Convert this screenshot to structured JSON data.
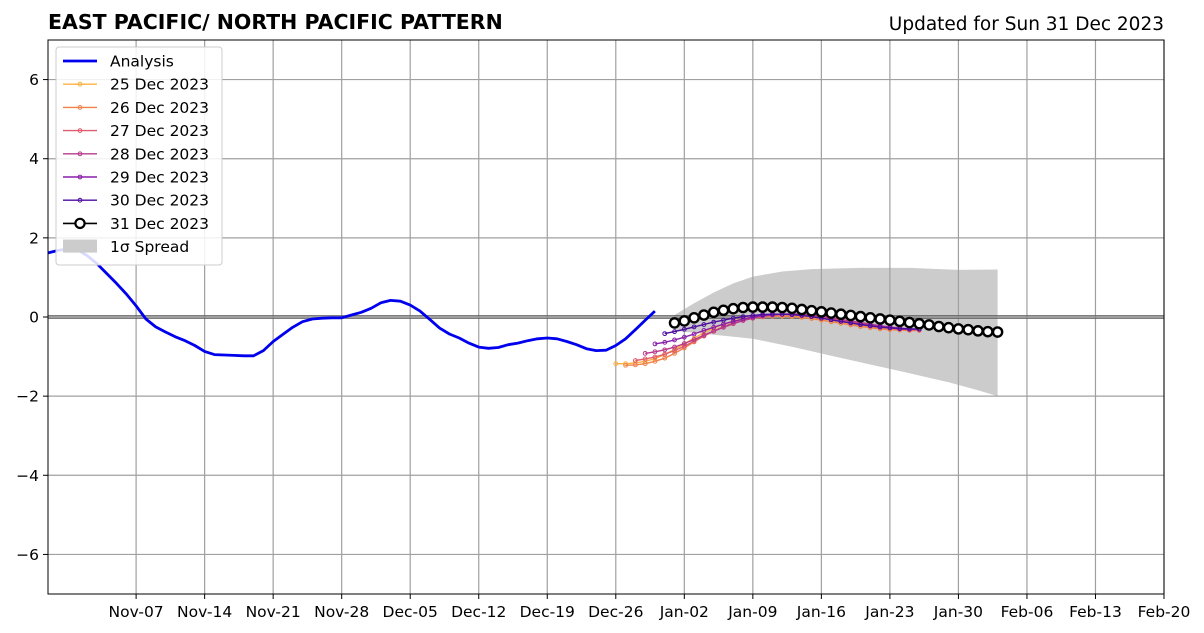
{
  "chart_data": {
    "type": "line",
    "title": "EAST PACIFIC/ NORTH PACIFIC PATTERN",
    "subtitle": "Updated for Sun 31 Dec 2023",
    "xlabel": "",
    "ylabel": "",
    "xlim": [
      "2023-10-29",
      "2024-02-20"
    ],
    "ylim": [
      -7,
      7
    ],
    "grid": true,
    "legend_position": "top-left",
    "x_tick_labels": [
      {
        "date": "2023-11-07",
        "label": "Nov-07"
      },
      {
        "date": "2023-11-14",
        "label": "Nov-14"
      },
      {
        "date": "2023-11-21",
        "label": "Nov-21"
      },
      {
        "date": "2023-11-28",
        "label": "Nov-28"
      },
      {
        "date": "2023-12-05",
        "label": "Dec-05"
      },
      {
        "date": "2023-12-12",
        "label": "Dec-12"
      },
      {
        "date": "2023-12-19",
        "label": "Dec-19"
      },
      {
        "date": "2023-12-26",
        "label": "Dec-26"
      },
      {
        "date": "2024-01-02",
        "label": "Jan-02"
      },
      {
        "date": "2024-01-09",
        "label": "Jan-09"
      },
      {
        "date": "2024-01-16",
        "label": "Jan-16"
      },
      {
        "date": "2024-01-23",
        "label": "Jan-23"
      },
      {
        "date": "2024-01-30",
        "label": "Jan-30"
      },
      {
        "date": "2024-02-06",
        "label": "Feb-06"
      },
      {
        "date": "2024-02-13",
        "label": "Feb-13"
      },
      {
        "date": "2024-02-20",
        "label": "Feb-20"
      }
    ],
    "y_tick_labels": [
      {
        "value": 6,
        "label": "6"
      },
      {
        "value": 4,
        "label": "4"
      },
      {
        "value": 2,
        "label": "2"
      },
      {
        "value": 0,
        "label": "0"
      },
      {
        "value": -2,
        "label": "−2"
      },
      {
        "value": -4,
        "label": "−4"
      },
      {
        "value": -6,
        "label": "−6"
      }
    ],
    "analysis": {
      "name": "Analysis",
      "color": "#0000ee",
      "start_date": "2023-10-29",
      "values": [
        1.62,
        1.68,
        1.72,
        1.7,
        1.55,
        1.35,
        1.1,
        0.85,
        0.58,
        0.28,
        -0.05,
        -0.25,
        -0.38,
        -0.5,
        -0.6,
        -0.72,
        -0.87,
        -0.95,
        -0.96,
        -0.97,
        -0.98,
        -0.98,
        -0.85,
        -0.62,
        -0.44,
        -0.26,
        -0.12,
        -0.05,
        -0.03,
        -0.02,
        -0.02,
        0.05,
        0.12,
        0.22,
        0.36,
        0.42,
        0.4,
        0.3,
        0.15,
        -0.06,
        -0.28,
        -0.43,
        -0.53,
        -0.66,
        -0.76,
        -0.79,
        -0.77,
        -0.7,
        -0.66,
        -0.6,
        -0.55,
        -0.53,
        -0.55,
        -0.62,
        -0.7,
        -0.8,
        -0.85,
        -0.84,
        -0.72,
        -0.55,
        -0.32,
        -0.08,
        0.15
      ]
    },
    "forecasts": [
      {
        "name": "25 Dec 2023",
        "color": "#fcb040",
        "start_date": "2023-12-26",
        "values": [
          -1.18,
          -1.18,
          -1.16,
          -1.12,
          -1.05,
          -0.95,
          -0.82,
          -0.68,
          -0.53,
          -0.4,
          -0.28,
          -0.18,
          -0.1,
          -0.04,
          0.0,
          0.02,
          0.03,
          0.03,
          0.02,
          0.0,
          -0.03,
          -0.07,
          -0.11,
          -0.15,
          -0.19,
          -0.23,
          -0.26,
          -0.29,
          -0.31,
          -0.32,
          -0.33,
          -0.33
        ]
      },
      {
        "name": "26 Dec 2023",
        "color": "#f0824a",
        "start_date": "2023-12-27",
        "values": [
          -1.22,
          -1.21,
          -1.18,
          -1.12,
          -1.04,
          -0.92,
          -0.78,
          -0.63,
          -0.48,
          -0.35,
          -0.24,
          -0.15,
          -0.08,
          -0.03,
          0.0,
          0.02,
          0.02,
          0.01,
          -0.01,
          -0.04,
          -0.08,
          -0.12,
          -0.16,
          -0.2,
          -0.24,
          -0.27,
          -0.3,
          -0.32,
          -0.33,
          -0.34,
          -0.34
        ]
      },
      {
        "name": "27 Dec 2023",
        "color": "#e05c6e",
        "start_date": "2023-12-28",
        "values": [
          -1.1,
          -1.06,
          -1.01,
          -0.94,
          -0.85,
          -0.74,
          -0.61,
          -0.48,
          -0.36,
          -0.25,
          -0.16,
          -0.08,
          -0.02,
          0.02,
          0.05,
          0.06,
          0.06,
          0.05,
          0.03,
          0.0,
          -0.04,
          -0.08,
          -0.12,
          -0.16,
          -0.2,
          -0.24,
          -0.27,
          -0.3,
          -0.32,
          -0.33
        ]
      },
      {
        "name": "28 Dec 2023",
        "color": "#b8398a",
        "start_date": "2023-12-29",
        "values": [
          -0.92,
          -0.88,
          -0.83,
          -0.76,
          -0.67,
          -0.57,
          -0.46,
          -0.36,
          -0.26,
          -0.17,
          -0.09,
          -0.03,
          0.02,
          0.05,
          0.07,
          0.08,
          0.07,
          0.05,
          0.02,
          -0.02,
          -0.06,
          -0.1,
          -0.14,
          -0.18,
          -0.22,
          -0.25,
          -0.28,
          -0.3,
          -0.31
        ]
      },
      {
        "name": "29 Dec 2023",
        "color": "#8a1fa8",
        "start_date": "2023-12-30",
        "values": [
          -0.68,
          -0.64,
          -0.58,
          -0.51,
          -0.43,
          -0.34,
          -0.26,
          -0.18,
          -0.11,
          -0.05,
          0.0,
          0.04,
          0.06,
          0.07,
          0.06,
          0.04,
          0.01,
          -0.03,
          -0.07,
          -0.11,
          -0.15,
          -0.19,
          -0.23,
          -0.26,
          -0.28,
          -0.3,
          -0.31,
          -0.31
        ]
      },
      {
        "name": "30 Dec 2023",
        "color": "#4b0c9e",
        "start_date": "2023-12-31",
        "values": [
          -0.42,
          -0.37,
          -0.31,
          -0.25,
          -0.19,
          -0.13,
          -0.08,
          -0.03,
          0.01,
          0.04,
          0.06,
          0.07,
          0.07,
          0.06,
          0.04,
          0.01,
          -0.03,
          -0.07,
          -0.11,
          -0.15,
          -0.19,
          -0.22,
          -0.25,
          -0.27,
          -0.29,
          -0.3,
          -0.3
        ]
      },
      {
        "name": "31 Dec 2023",
        "color": "#000000",
        "start_date": "2024-01-01",
        "values": [
          -0.15,
          -0.1,
          -0.02,
          0.05,
          0.12,
          0.17,
          0.21,
          0.24,
          0.25,
          0.25,
          0.25,
          0.24,
          0.22,
          0.19,
          0.16,
          0.13,
          0.1,
          0.07,
          0.04,
          0.01,
          -0.02,
          -0.05,
          -0.08,
          -0.11,
          -0.14,
          -0.17,
          -0.2,
          -0.24,
          -0.27,
          -0.3,
          -0.32,
          -0.35,
          -0.37,
          -0.38
        ]
      }
    ],
    "spread": {
      "name": "1σ Spread",
      "color": "#cccccc",
      "start_date": "2024-01-01",
      "end_date": "2024-02-03",
      "upper": [
        {
          "date": "2024-01-01",
          "value": 0.05
        },
        {
          "date": "2024-01-03",
          "value": 0.35
        },
        {
          "date": "2024-01-05",
          "value": 0.62
        },
        {
          "date": "2024-01-07",
          "value": 0.85
        },
        {
          "date": "2024-01-09",
          "value": 1.02
        },
        {
          "date": "2024-01-12",
          "value": 1.15
        },
        {
          "date": "2024-01-15",
          "value": 1.21
        },
        {
          "date": "2024-01-20",
          "value": 1.24
        },
        {
          "date": "2024-01-25",
          "value": 1.24
        },
        {
          "date": "2024-01-30",
          "value": 1.19
        },
        {
          "date": "2024-02-03",
          "value": 1.2
        }
      ],
      "lower": [
        {
          "date": "2024-01-01",
          "value": -0.35
        },
        {
          "date": "2024-01-05",
          "value": -0.45
        },
        {
          "date": "2024-01-09",
          "value": -0.55
        },
        {
          "date": "2024-01-13",
          "value": -0.75
        },
        {
          "date": "2024-01-17",
          "value": -0.98
        },
        {
          "date": "2024-01-21",
          "value": -1.2
        },
        {
          "date": "2024-01-25",
          "value": -1.42
        },
        {
          "date": "2024-01-29",
          "value": -1.65
        },
        {
          "date": "2024-02-01",
          "value": -1.85
        },
        {
          "date": "2024-02-03",
          "value": -2.0
        }
      ]
    },
    "zero_line": 0
  }
}
